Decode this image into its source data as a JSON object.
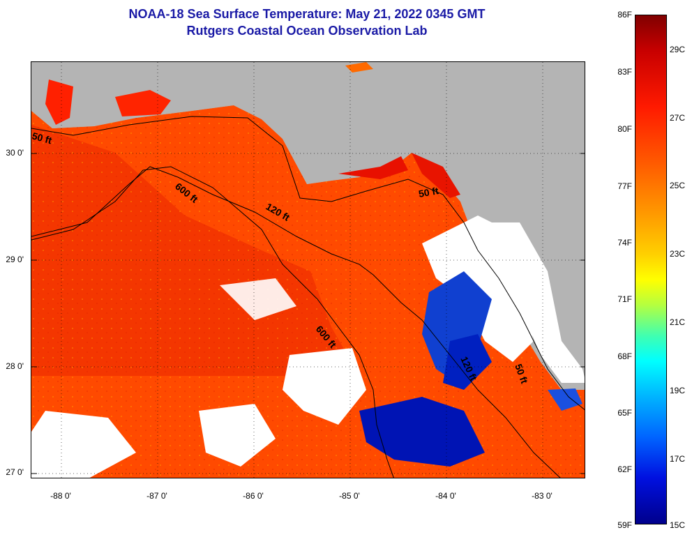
{
  "title": {
    "line1": "NOAA-18 Sea Surface Temperature:  May 21, 2022 0345 GMT",
    "line2": "Rutgers Coastal Ocean Observation Lab"
  },
  "axes": {
    "lat_labels": [
      "30 0'",
      "29 0'",
      "28 0'",
      "27 0'"
    ],
    "lon_labels": [
      "-88 0'",
      "-87 0'",
      "-86 0'",
      "-85 0'",
      "-84 0'",
      "-83 0'"
    ]
  },
  "contour_labels": {
    "c50_west": "50 ft",
    "c600_a": "600 ft",
    "c120": "120 ft",
    "c50_east": "50 ft",
    "c600_b": "600 ft",
    "c50_south": "50 ft",
    "c120_b": "120 ft"
  },
  "colorbar": {
    "fahrenheit": [
      "86F",
      "83F",
      "80F",
      "77F",
      "74F",
      "71F",
      "68F",
      "65F",
      "62F",
      "59F"
    ],
    "celsius": [
      "29C",
      "27C",
      "25C",
      "23C",
      "21C",
      "19C",
      "17C",
      "15C"
    ]
  },
  "colors": {
    "title": "#1a1aa6",
    "land": "#b4b4b4",
    "warm_water": "#ff3c00",
    "cold_water": "#0014b4",
    "cloud": "#ffffff"
  }
}
